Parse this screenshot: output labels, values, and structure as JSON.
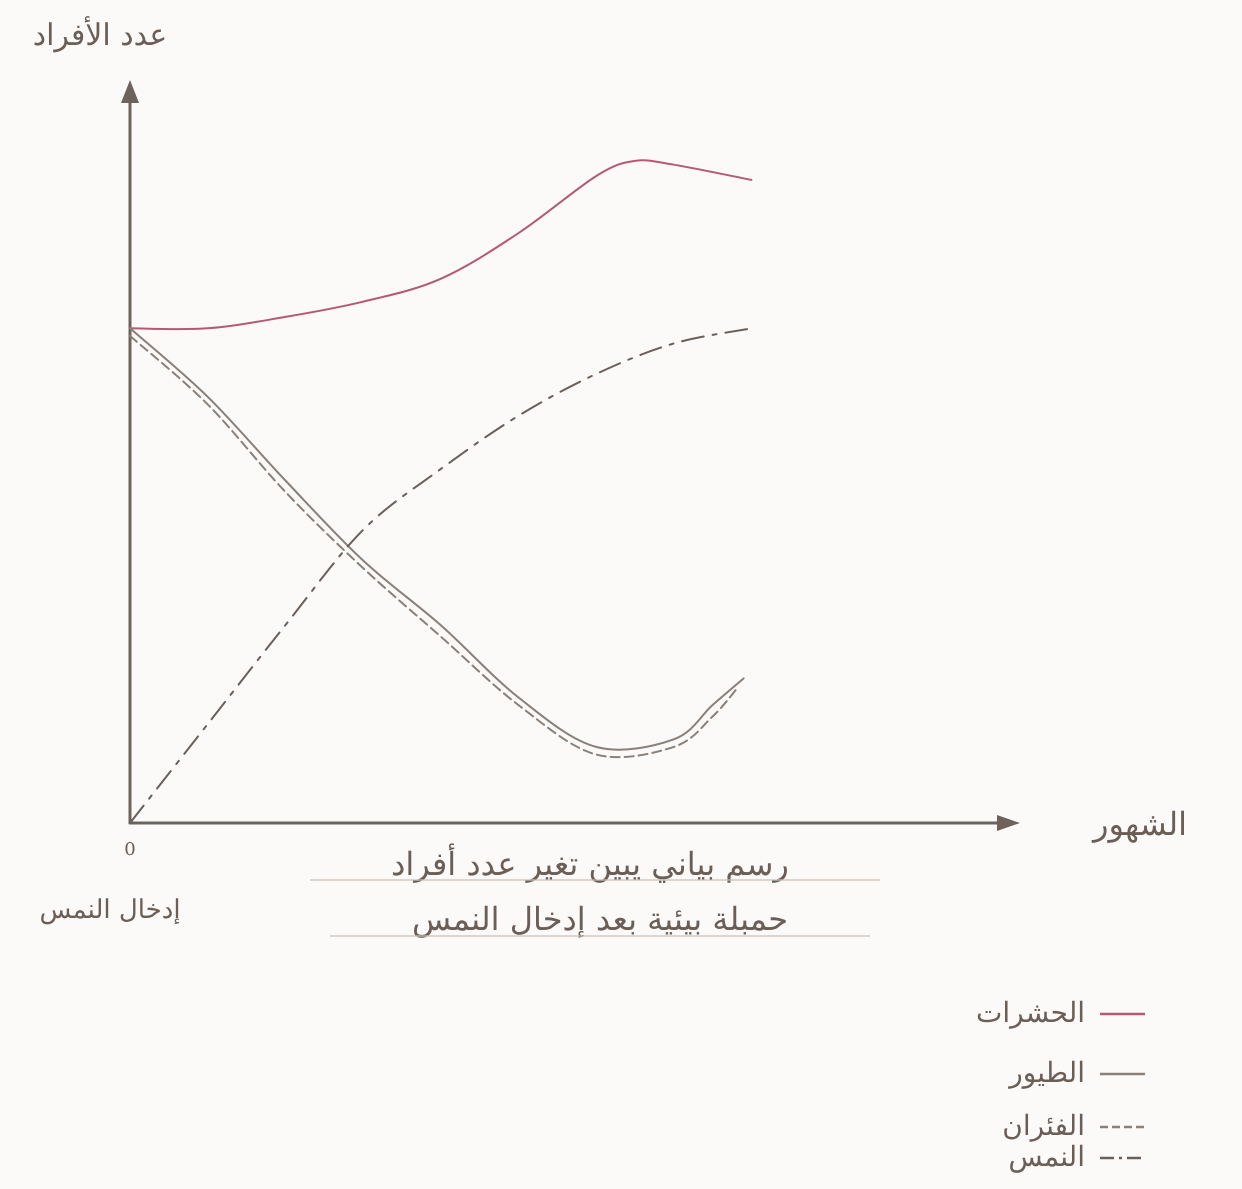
{
  "chart_data": {
    "type": "line",
    "title_line1": "رسم بياني يبين تغير عدد أفراد",
    "title_line2": "حمبلة بيئية بعد إدخال النمس",
    "xlabel": "الشهور",
    "ylabel": "عدد الأفراد",
    "x_origin_label": "0",
    "x_start_annotation": "إدخال النمس",
    "axis_color": "#6e625c",
    "series": [
      {
        "name": "الحشرات",
        "color": "#b35a78",
        "dash": "solid",
        "points": [
          [
            0,
            6.5
          ],
          [
            1,
            6.5
          ],
          [
            2,
            6.65
          ],
          [
            3,
            6.85
          ],
          [
            4,
            7.15
          ],
          [
            5,
            7.75
          ],
          [
            6,
            8.5
          ],
          [
            6.5,
            8.7
          ],
          [
            7,
            8.65
          ],
          [
            8,
            8.45
          ]
        ]
      },
      {
        "name": "الطيور",
        "color": "#8a7f79",
        "dash": "solid",
        "points": [
          [
            0,
            6.5
          ],
          [
            1,
            5.6
          ],
          [
            2,
            4.5
          ],
          [
            3,
            3.45
          ],
          [
            4,
            2.6
          ],
          [
            5,
            1.65
          ],
          [
            6,
            1.0
          ],
          [
            7,
            1.1
          ],
          [
            7.5,
            1.55
          ],
          [
            7.9,
            1.9
          ]
        ]
      },
      {
        "name": "الفئران",
        "color": "#8a7f79",
        "dash": "dashed",
        "points": [
          [
            0,
            6.4
          ],
          [
            1,
            5.5
          ],
          [
            2,
            4.35
          ],
          [
            3,
            3.35
          ],
          [
            4,
            2.45
          ],
          [
            5,
            1.55
          ],
          [
            6,
            0.9
          ],
          [
            7,
            1.0
          ],
          [
            7.5,
            1.4
          ],
          [
            7.8,
            1.75
          ]
        ]
      },
      {
        "name": "النمس",
        "color": "#6a5f5a",
        "dash": "dashdot",
        "points": [
          [
            0,
            0
          ],
          [
            1,
            1.3
          ],
          [
            2,
            2.6
          ],
          [
            3,
            3.85
          ],
          [
            4,
            4.65
          ],
          [
            5,
            5.35
          ],
          [
            6,
            5.9
          ],
          [
            7,
            6.3
          ],
          [
            8,
            6.5
          ]
        ]
      }
    ],
    "xlim": [
      0,
      11.2
    ],
    "ylim": [
      0,
      9.5
    ],
    "grid": false,
    "legend": "bottom-right"
  }
}
